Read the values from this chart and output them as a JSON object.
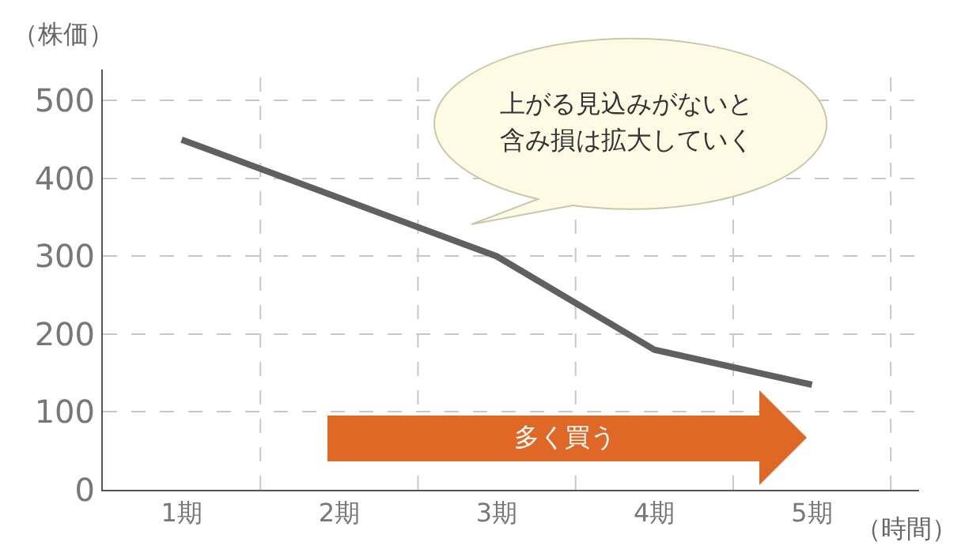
{
  "chart_data": {
    "type": "line",
    "categories": [
      "1期",
      "2期",
      "3期",
      "4期",
      "5期"
    ],
    "values": [
      450,
      375,
      300,
      180,
      135
    ],
    "color": "#606060",
    "xlabel": "（時間）",
    "ylabel": "（株価）",
    "ylim": [
      0,
      540
    ],
    "yticks": [
      0,
      100,
      200,
      300,
      400,
      500
    ],
    "grid": true,
    "legend": false,
    "marker": "none",
    "line_style": "solid",
    "annotations": [
      "上がる見込みがないと含み損は拡大していく",
      "多く買う"
    ]
  }
}
